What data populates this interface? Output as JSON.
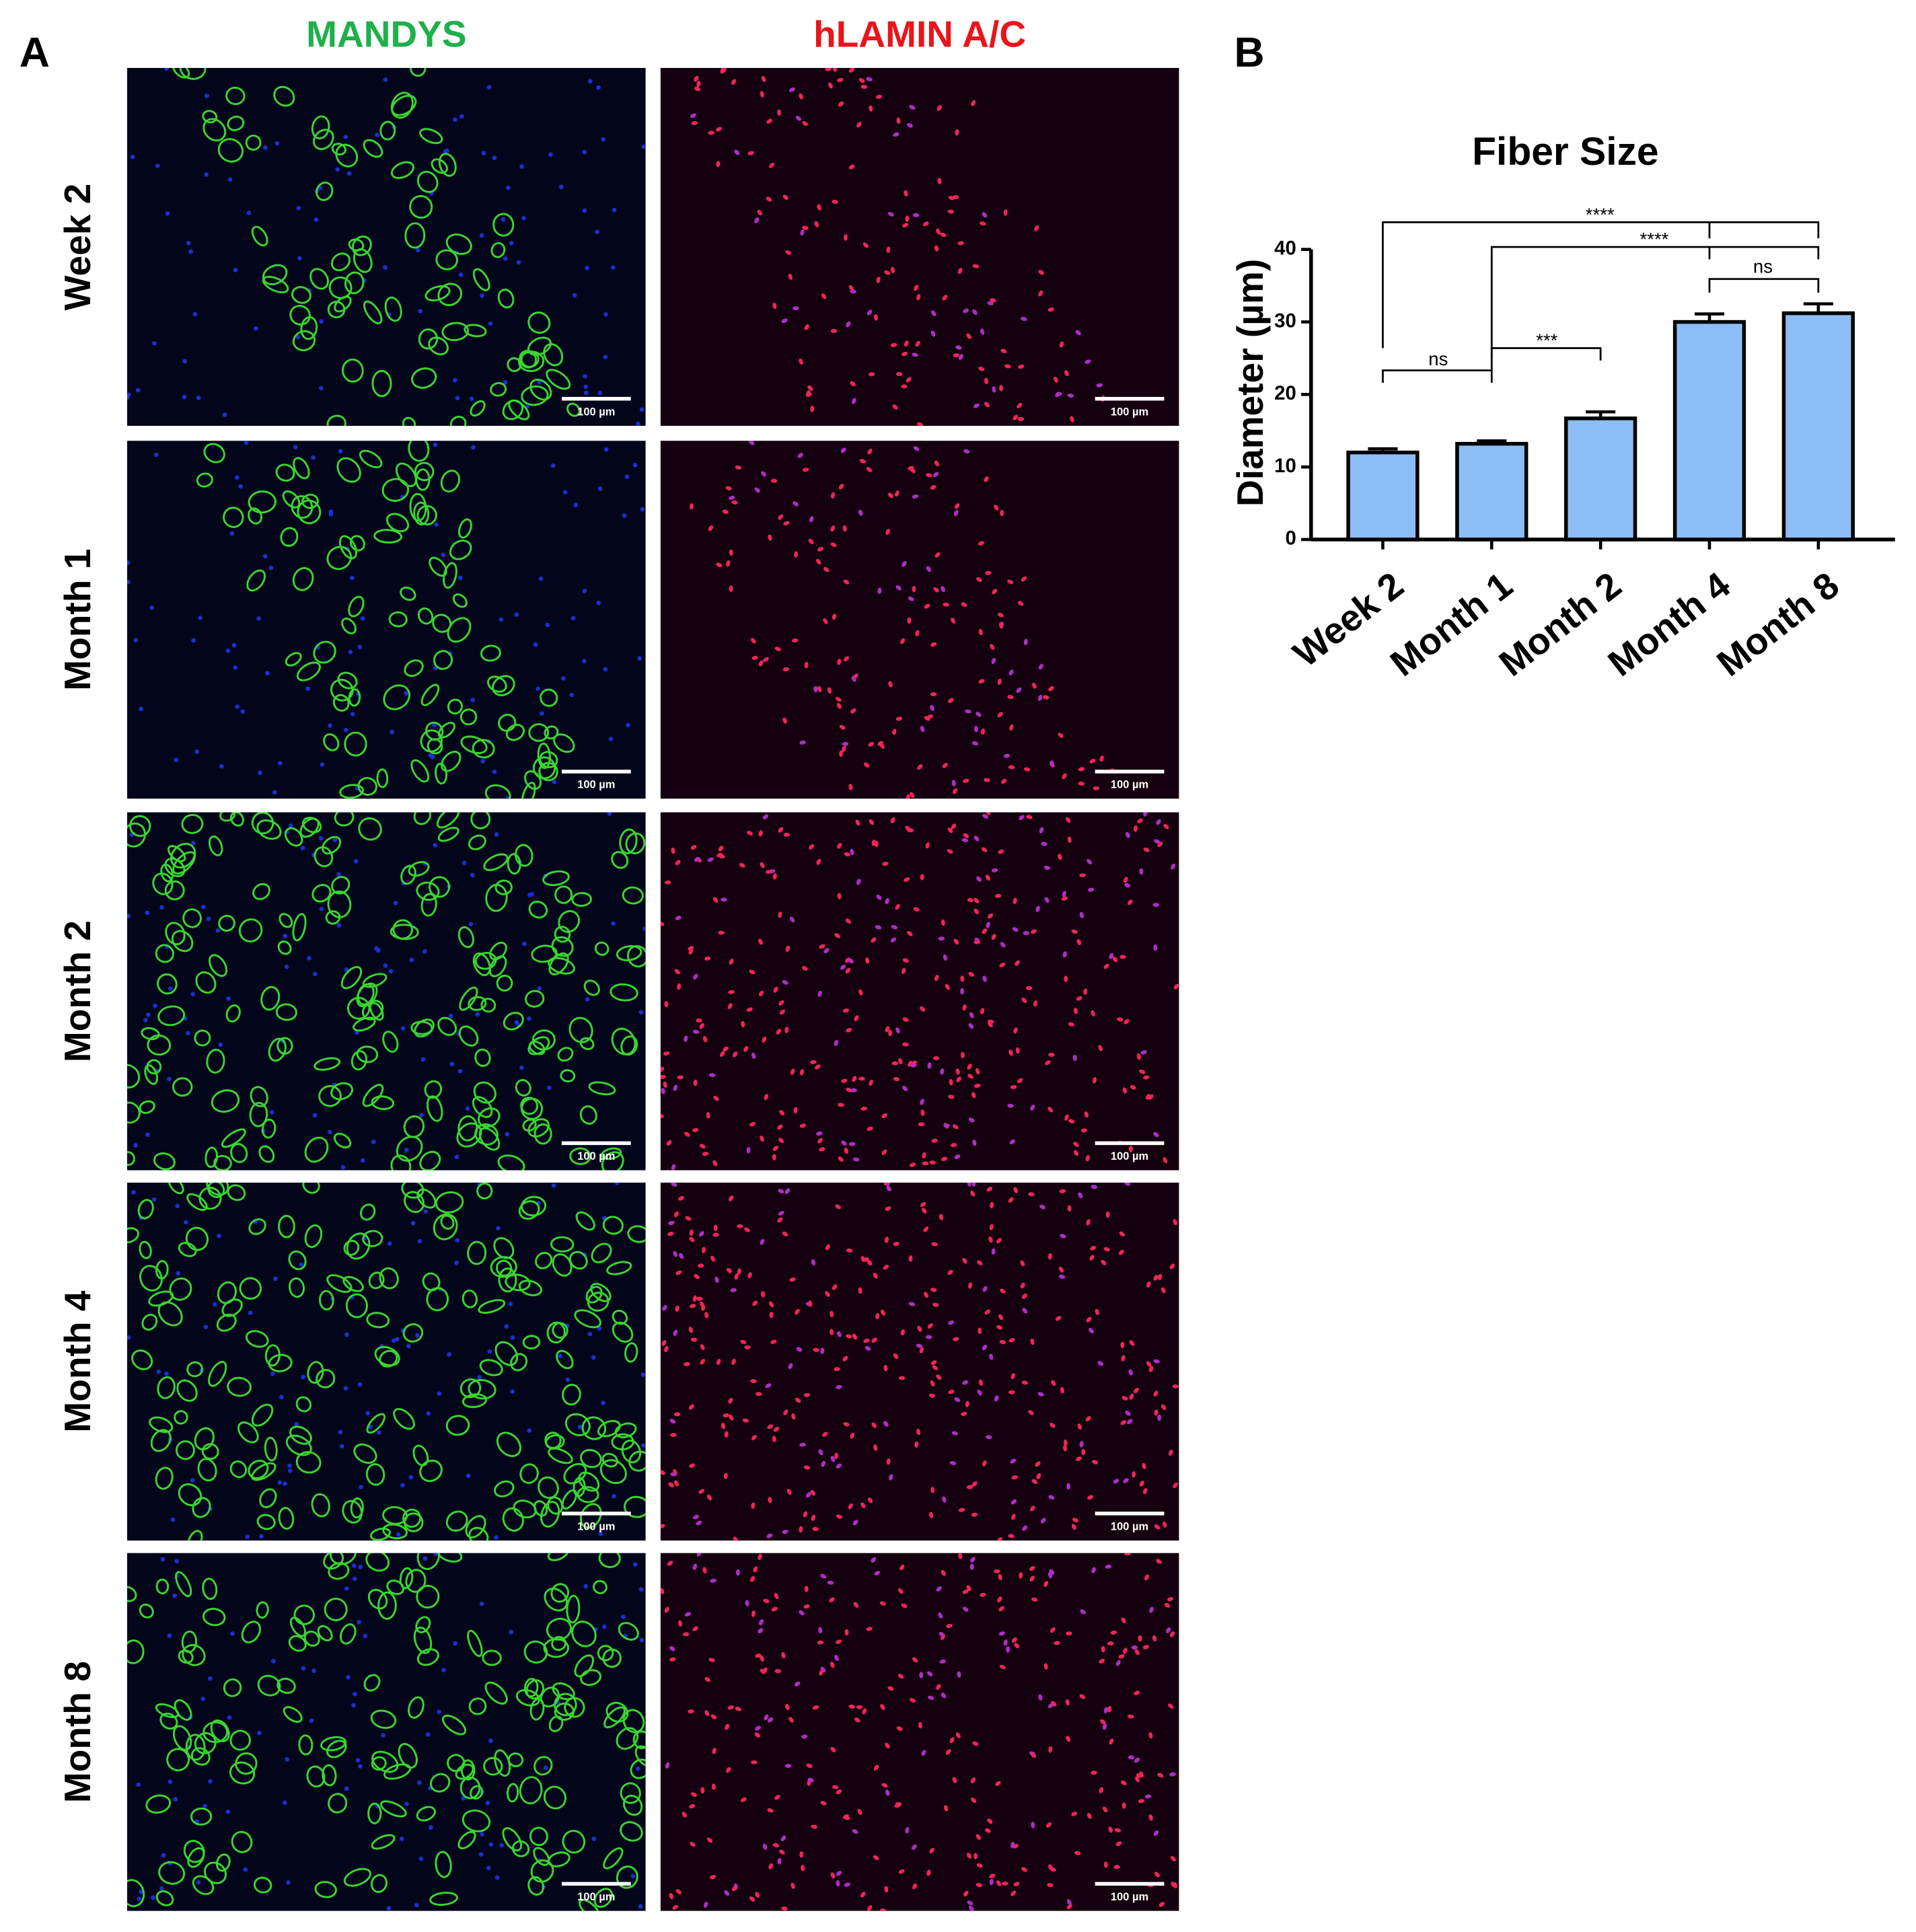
{
  "panel_a": {
    "letter": "A",
    "columns": [
      "MANDYS",
      "hLAMIN A/C"
    ],
    "rows": [
      "Week 2",
      "Month 1",
      "Month 2",
      "Month 4",
      "Month 8"
    ],
    "scale_bar": "100 µm"
  },
  "chart_data": {
    "type": "bar",
    "panel_letter": "B",
    "title": "Fiber Size",
    "y_label": "Diameter (µm)",
    "categories": [
      "Week 2",
      "Month 1",
      "Month 2",
      "Month 4",
      "Month 8"
    ],
    "values": [
      12,
      13.2,
      16.7,
      30,
      31.2
    ],
    "errors": [
      0.5,
      0.4,
      0.9,
      1.1,
      1.3
    ],
    "color": "#8dbdf5",
    "ylim": [
      0,
      40
    ],
    "yticks": [
      0,
      10,
      20,
      30,
      40
    ],
    "annotations": [
      "****",
      "****",
      "ns",
      "***",
      "ns"
    ]
  }
}
